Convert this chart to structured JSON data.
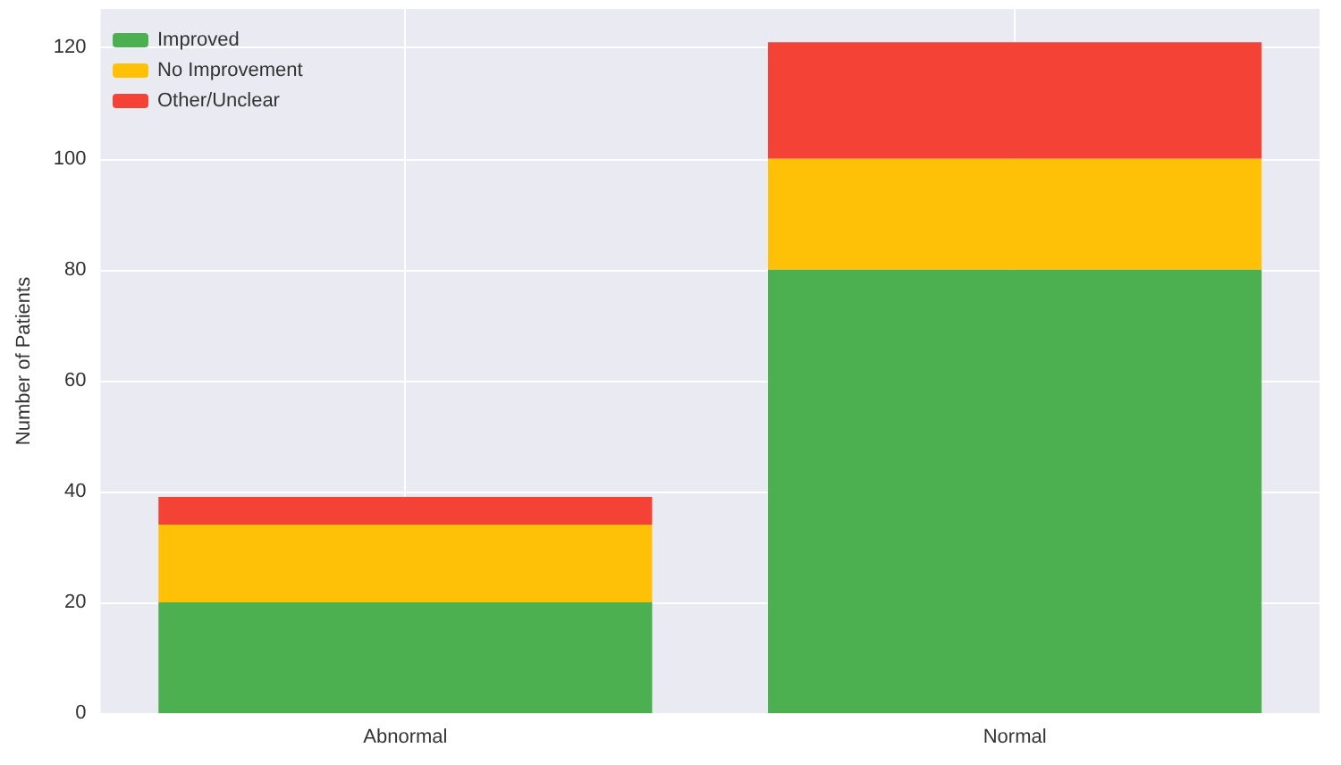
{
  "chart_data": {
    "type": "bar",
    "ylabel": "Number of Patients",
    "categories": [
      "Abnormal",
      "Normal"
    ],
    "stacked": true,
    "series": [
      {
        "name": "Improved",
        "color": "#4caf50",
        "values": [
          20,
          80
        ]
      },
      {
        "name": "No Improvement",
        "color": "#ffc107",
        "values": [
          14,
          20
        ]
      },
      {
        "name": "Other/Unclear",
        "color": "#f44336",
        "values": [
          5,
          21
        ]
      }
    ],
    "ylim": [
      0,
      127
    ],
    "yticks": [
      0,
      20,
      40,
      60,
      80,
      100,
      120
    ],
    "grid": true,
    "legend": "top left"
  }
}
